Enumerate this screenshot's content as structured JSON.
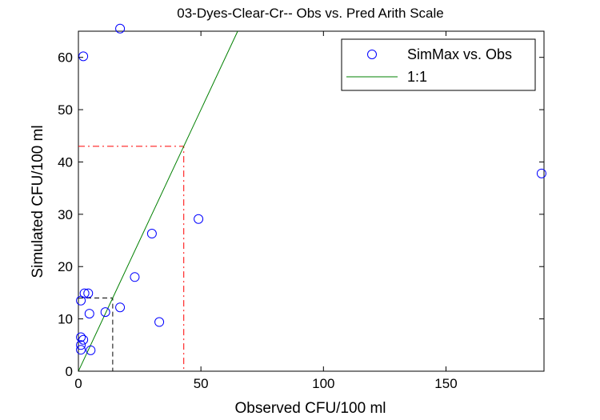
{
  "chart_data": {
    "type": "scatter",
    "title": "03-Dyes-Clear-Cr-- Obs vs. Pred Arith Scale",
    "xlabel": "Observed CFU/100 ml",
    "ylabel": "Simulated CFU/100 ml",
    "xlim": [
      0,
      190
    ],
    "ylim": [
      0,
      65
    ],
    "xticks": [
      0,
      50,
      100,
      150
    ],
    "yticks": [
      0,
      10,
      20,
      30,
      40,
      50,
      60
    ],
    "grid": false,
    "legend_position": "top-right",
    "series": [
      {
        "name": "SimMax vs. Obs",
        "marker": "circle-open",
        "color": "#0000ff",
        "points": [
          [
            17,
            65.5
          ],
          [
            2,
            60.2
          ],
          [
            189,
            37.8
          ],
          [
            49,
            29.1
          ],
          [
            30,
            26.3
          ],
          [
            23,
            18.0
          ],
          [
            2.5,
            14.9
          ],
          [
            4,
            14.9
          ],
          [
            1,
            13.5
          ],
          [
            17,
            12.2
          ],
          [
            11,
            11.3
          ],
          [
            4.5,
            11.0
          ],
          [
            33,
            9.4
          ],
          [
            1,
            6.5
          ],
          [
            2,
            6.0
          ],
          [
            1,
            5.0
          ],
          [
            1,
            4.1
          ],
          [
            5,
            4.0
          ]
        ]
      },
      {
        "name": "1:1",
        "style": "line",
        "color": "#008000",
        "points": [
          [
            0,
            0
          ],
          [
            65,
            65
          ]
        ]
      }
    ],
    "reference_lines": [
      {
        "color": "#000000",
        "style": "dash",
        "points": [
          [
            0,
            14
          ],
          [
            14,
            14
          ],
          [
            14,
            0
          ]
        ]
      },
      {
        "color": "#ff0000",
        "style": "dash-dot",
        "points": [
          [
            0,
            43
          ],
          [
            43,
            43
          ],
          [
            43,
            0
          ]
        ]
      }
    ]
  }
}
